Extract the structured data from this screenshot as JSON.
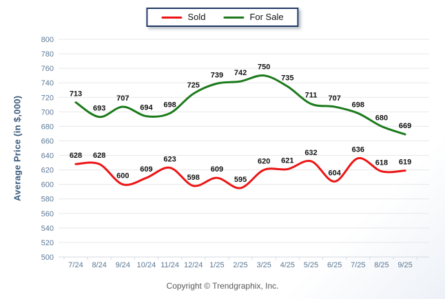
{
  "chart_data": {
    "type": "line",
    "categories": [
      "7/24",
      "8/24",
      "9/24",
      "10/24",
      "11/24",
      "12/24",
      "1/25",
      "2/25",
      "3/25",
      "4/25",
      "5/25",
      "6/25",
      "7/25",
      "8/25",
      "9/25"
    ],
    "series": [
      {
        "name": "Sold",
        "color": "#ed1414",
        "values": [
          628,
          628,
          600,
          609,
          623,
          598,
          609,
          595,
          620,
          621,
          632,
          604,
          636,
          618,
          619
        ]
      },
      {
        "name": "For Sale",
        "color": "#1b7a1b",
        "values": [
          713,
          693,
          707,
          694,
          698,
          725,
          739,
          742,
          750,
          735,
          711,
          707,
          698,
          680,
          669
        ]
      }
    ],
    "ylabel": "Average Price (in $,000)",
    "ylim": [
      500,
      800
    ],
    "ytick_step": 20,
    "grid": true,
    "legend_position": "top",
    "xlabel": "",
    "title": ""
  },
  "footer": {
    "copyright": "Copyright © Trendgraphix, Inc."
  },
  "colors": {
    "grid": "#e7e7e7",
    "axis": "#d4dae2",
    "tick_label": "#5b7795",
    "axis_title": "#3a5a7d",
    "data_label": "#111111",
    "legend_border": "#1f3864",
    "footer_text": "#595959"
  }
}
